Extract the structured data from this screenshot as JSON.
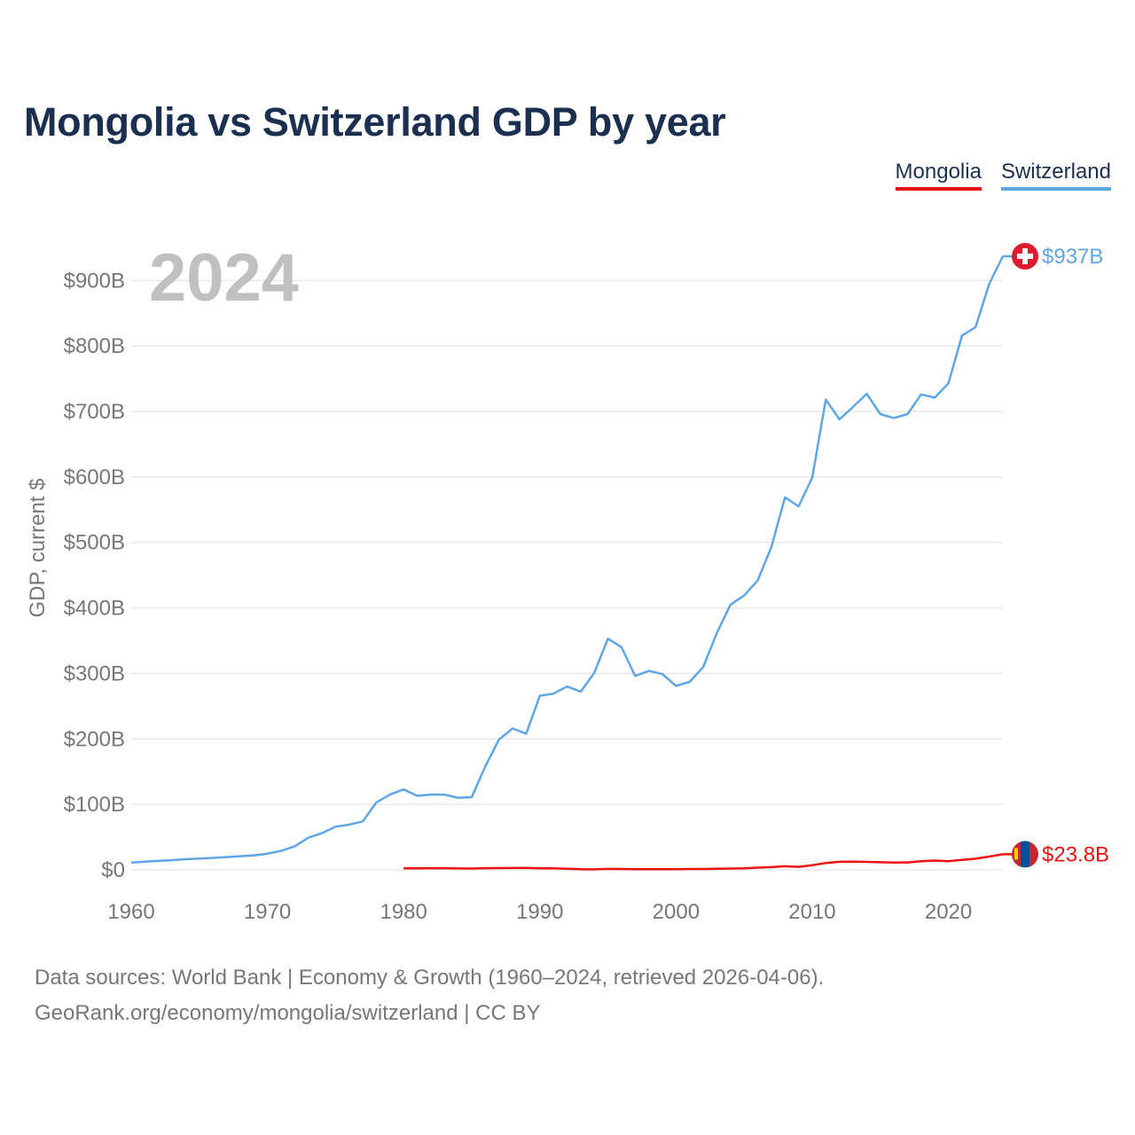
{
  "title": "Mongolia vs Switzerland GDP by year",
  "legend": [
    {
      "label": "Mongolia",
      "color": "#ee1111"
    },
    {
      "label": "Switzerland",
      "color": "#5ea6e6"
    }
  ],
  "year_label": "2024",
  "footer": {
    "sources": "Data sources: World Bank | Economy & Growth (1960–2024, retrieved 2026-04-06).",
    "credit": "GeoRank.org/economy/mongolia/switzerland | CC BY"
  },
  "chart_data": {
    "type": "line",
    "title": "Mongolia vs Switzerland GDP by year",
    "xlabel": "",
    "ylabel": "GDP, current $",
    "xlim": [
      1960,
      2024
    ],
    "ylim": [
      0,
      937
    ],
    "y_unit": "billion US$",
    "grid": true,
    "x_ticks": [
      1960,
      1970,
      1980,
      1990,
      2000,
      2010,
      2020
    ],
    "y_ticks": [
      {
        "value": 0,
        "label": "$0"
      },
      {
        "value": 100,
        "label": "$100B"
      },
      {
        "value": 200,
        "label": "$200B"
      },
      {
        "value": 300,
        "label": "$300B"
      },
      {
        "value": 400,
        "label": "$400B"
      },
      {
        "value": 500,
        "label": "$500B"
      },
      {
        "value": 600,
        "label": "$600B"
      },
      {
        "value": 700,
        "label": "$700B"
      },
      {
        "value": 800,
        "label": "$800B"
      },
      {
        "value": 900,
        "label": "$900B"
      }
    ],
    "series": [
      {
        "name": "Switzerland",
        "color": "#5ea6e6",
        "end_label": "$937B",
        "x": [
          1960,
          1961,
          1962,
          1963,
          1964,
          1965,
          1966,
          1967,
          1968,
          1969,
          1970,
          1971,
          1972,
          1973,
          1974,
          1975,
          1976,
          1977,
          1978,
          1979,
          1980,
          1981,
          1982,
          1983,
          1984,
          1985,
          1986,
          1987,
          1988,
          1989,
          1990,
          1991,
          1992,
          1993,
          1994,
          1995,
          1996,
          1997,
          1998,
          1999,
          2000,
          2001,
          2002,
          2003,
          2004,
          2005,
          2006,
          2007,
          2008,
          2009,
          2010,
          2011,
          2012,
          2013,
          2014,
          2015,
          2016,
          2017,
          2018,
          2019,
          2020,
          2021,
          2022,
          2023,
          2024
        ],
        "values": [
          11,
          12.5,
          13.7,
          14.9,
          16.3,
          17.3,
          18.3,
          19.5,
          20.8,
          22.2,
          24.8,
          29,
          36,
          49,
          56,
          66,
          69,
          74,
          103,
          115,
          123,
          113,
          115,
          115,
          110,
          111,
          158,
          199,
          216,
          208,
          266,
          269,
          280,
          272,
          301,
          353,
          340,
          296,
          304,
          299,
          281,
          287,
          310,
          362,
          405,
          419,
          442,
          493,
          569,
          555,
          599,
          718,
          688,
          707,
          727,
          696,
          690,
          696,
          726,
          721,
          743,
          816,
          829,
          895,
          937
        ]
      },
      {
        "name": "Mongolia",
        "color": "#ee1111",
        "end_label": "$23.8B",
        "x": [
          1980,
          1981,
          1982,
          1983,
          1984,
          1985,
          1986,
          1987,
          1988,
          1989,
          1990,
          1991,
          1992,
          1993,
          1994,
          1995,
          1996,
          1997,
          1998,
          1999,
          2000,
          2001,
          2002,
          2003,
          2004,
          2005,
          2006,
          2007,
          2008,
          2009,
          2010,
          2011,
          2012,
          2013,
          2014,
          2015,
          2016,
          2017,
          2018,
          2019,
          2020,
          2021,
          2022,
          2023,
          2024
        ],
        "values": [
          2.3,
          2.3,
          2.6,
          2.6,
          2.1,
          2.0,
          2.6,
          2.7,
          2.8,
          3.0,
          2.5,
          2.3,
          1.8,
          0.9,
          0.8,
          1.5,
          1.4,
          1.1,
          1.1,
          0.9,
          1.1,
          1.3,
          1.4,
          1.6,
          2.0,
          2.5,
          3.4,
          4.2,
          5.6,
          4.6,
          7.2,
          10.4,
          12.3,
          12.6,
          12.2,
          11.7,
          11.2,
          11.4,
          13.1,
          14.2,
          13.3,
          15.3,
          17.1,
          20.3,
          23.8
        ]
      }
    ]
  }
}
